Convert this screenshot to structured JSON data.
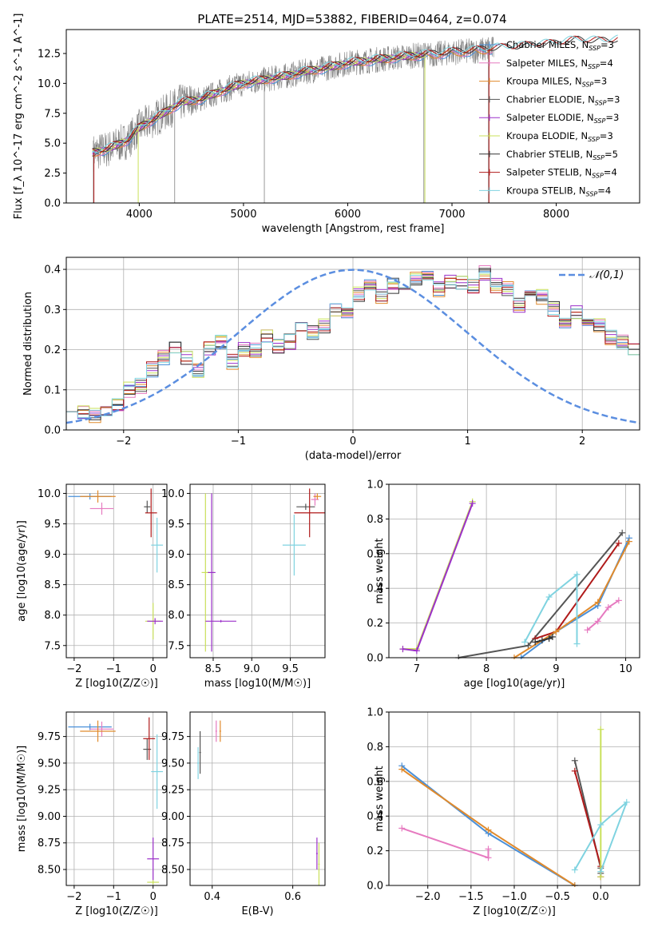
{
  "title": "PLATE=2514, MJD=53882, FIBERID=0464, z=0.074",
  "colors": {
    "chabrier_miles": "#4a90d9",
    "salpeter_miles": "#e67ac0",
    "kroupa_miles": "#e08a2c",
    "chabrier_elodie": "#555555",
    "salpeter_elodie": "#9b30c9",
    "kroupa_elodie": "#c9e05a",
    "chabrier_stelib": "#333333",
    "salpeter_stelib": "#b01a1a",
    "kroupa_stelib": "#7fd3e0",
    "data": "#808080",
    "normal": "#5b8ee0"
  },
  "chart_data": [
    {
      "id": "spectrum",
      "type": "line",
      "xlabel": "wavelength [Angstrom, rest frame]",
      "ylabel": "Flux [f_λ 10^-17 erg cm^-2 s^-1 A^-1]",
      "xlim": [
        3300,
        8800
      ],
      "ylim": [
        0,
        14.5
      ],
      "xticks": [
        "4000",
        "5000",
        "6000",
        "7000",
        "8000"
      ],
      "yticks": [
        "0.0",
        "2.5",
        "5.0",
        "7.5",
        "10.0",
        "12.5"
      ],
      "grid": false,
      "legend_position": "right",
      "legend": [
        {
          "name": "Chabrier MILES",
          "n_ssp": "3"
        },
        {
          "name": "Salpeter MILES",
          "n_ssp": "4"
        },
        {
          "name": "Kroupa MILES",
          "n_ssp": "3"
        },
        {
          "name": "Chabrier ELODIE",
          "n_ssp": "3"
        },
        {
          "name": "Salpeter ELODIE",
          "n_ssp": "3"
        },
        {
          "name": "Kroupa ELODIE",
          "n_ssp": "3"
        },
        {
          "name": "Chabrier STELIB",
          "n_ssp": "5"
        },
        {
          "name": "Salpeter STELIB",
          "n_ssp": "4"
        },
        {
          "name": "Kroupa STELIB",
          "n_ssp": "4"
        }
      ],
      "model_continuum": {
        "x": [
          3550,
          3700,
          3900,
          4000,
          4200,
          4400,
          4600,
          4800,
          5000,
          5200,
          5400,
          5600,
          5800,
          6000,
          6200,
          6400,
          6600,
          6800,
          7000,
          7200,
          7400,
          7600,
          7800,
          8000,
          8200,
          8400,
          8600
        ],
        "y": [
          4.2,
          4.5,
          5.3,
          6.3,
          7.3,
          8.4,
          8.7,
          9.4,
          10.0,
          10.3,
          10.6,
          11.0,
          11.3,
          11.7,
          11.9,
          12.1,
          12.3,
          12.4,
          12.6,
          12.7,
          12.9,
          13.0,
          13.2,
          13.3,
          13.6,
          13.5,
          13.6
        ]
      }
    },
    {
      "id": "residuals",
      "type": "bar",
      "xlabel": "(data-model)/error",
      "ylabel": "Normed distribution",
      "xlim": [
        -2.5,
        2.5
      ],
      "ylim": [
        0,
        0.43
      ],
      "xticks": [
        "−2",
        "−1",
        "0",
        "1",
        "2"
      ],
      "yticks": [
        "0.0",
        "0.1",
        "0.2",
        "0.3",
        "0.4"
      ],
      "grid": true,
      "legend_position": "top-right",
      "legend": [
        "𝒩(0,1)"
      ],
      "bin_width": 0.1,
      "bin_start": -2.5,
      "reference_values": [
        0.065,
        0.045,
        0.038,
        0.05,
        0.06,
        0.1,
        0.11,
        0.15,
        0.18,
        0.2,
        0.18,
        0.15,
        0.2,
        0.22,
        0.17,
        0.2,
        0.2,
        0.23,
        0.21,
        0.22,
        0.25,
        0.24,
        0.26,
        0.3,
        0.29,
        0.34,
        0.36,
        0.33,
        0.36,
        0.34,
        0.38,
        0.39,
        0.35,
        0.37,
        0.37,
        0.36,
        0.39,
        0.36,
        0.35,
        0.31,
        0.34,
        0.33,
        0.3,
        0.26,
        0.29,
        0.27,
        0.26,
        0.23,
        0.22,
        0.2,
        0.17,
        0.19,
        0.15,
        0.13,
        0.14,
        0.1,
        0.1,
        0.09,
        0.08,
        0.075,
        0.06,
        0.055,
        0.05,
        0.04,
        0.035
      ],
      "normal_mean": 0,
      "normal_sigma": 1
    },
    {
      "id": "z-age",
      "type": "scatter",
      "xlabel": "Z [log10(Z/Z☉)]",
      "ylabel": "age [log10(age/yr)]",
      "xlim": [
        -2.2,
        0.35
      ],
      "ylim": [
        7.3,
        10.15
      ],
      "xticks": [
        "−2",
        "−1",
        "0"
      ],
      "yticks": [
        "7.5",
        "8.0",
        "8.5",
        "9.0",
        "9.5",
        "10.0"
      ],
      "grid": true,
      "points": [
        {
          "c": "chabrier_miles",
          "x": -1.6,
          "y": 9.95,
          "xerr": 0.55,
          "yerr": 0.05
        },
        {
          "c": "salpeter_miles",
          "x": -1.3,
          "y": 9.75,
          "xerr": 0.3,
          "yerr": 0.1
        },
        {
          "c": "kroupa_miles",
          "x": -1.4,
          "y": 9.95,
          "xerr": 0.45,
          "yerr": 0.1
        },
        {
          "c": "chabrier_elodie",
          "x": -0.15,
          "y": 9.78,
          "xerr": 0.08,
          "yerr": 0.1
        },
        {
          "c": "salpeter_stelib",
          "x": -0.05,
          "y": 9.68,
          "xerr": 0.15,
          "yerr": 0.4
        },
        {
          "c": "kroupa_stelib",
          "x": 0.1,
          "y": 9.15,
          "xerr": 0.15,
          "yerr": 0.45
        },
        {
          "c": "kroupa_elodie",
          "x": 0.0,
          "y": 7.9,
          "xerr": 0.2,
          "yerr": 0.3
        },
        {
          "c": "salpeter_elodie",
          "x": 0.05,
          "y": 7.9,
          "xerr": 0.2,
          "yerr": 0.05
        }
      ]
    },
    {
      "id": "mass-age",
      "type": "scatter",
      "xlabel": "mass [log10(M/M☉)]",
      "ylabel": "",
      "xlim": [
        8.2,
        9.95
      ],
      "ylim": [
        7.3,
        10.15
      ],
      "xticks": [
        "8.5",
        "9.0",
        "9.5"
      ],
      "yticks": [
        "7.5",
        "8.0",
        "8.5",
        "9.0",
        "9.5",
        "10.0"
      ],
      "grid": true,
      "points": [
        {
          "c": "chabrier_elodie",
          "x": 9.7,
          "y": 9.78,
          "xerr": 0.12,
          "yerr": 0.05
        },
        {
          "c": "salpeter_miles",
          "x": 9.82,
          "y": 9.9,
          "xerr": 0.05,
          "yerr": 0.1
        },
        {
          "c": "salpeter_stelib",
          "x": 9.75,
          "y": 9.68,
          "xerr": 0.2,
          "yerr": 0.4
        },
        {
          "c": "kroupa_stelib",
          "x": 9.55,
          "y": 9.15,
          "xerr": 0.15,
          "yerr": 0.5
        },
        {
          "c": "kroupa_miles",
          "x": 9.85,
          "y": 9.95,
          "xerr": 0.05,
          "yerr": 0.05
        },
        {
          "c": "kroupa_elodie",
          "x": 8.4,
          "y": 8.7,
          "xerr": 0.05,
          "yerr": 1.3
        },
        {
          "c": "salpeter_elodie",
          "x": 8.48,
          "y": 8.7,
          "xerr": 0.05,
          "yerr": 1.3
        },
        {
          "c": "salpeter_elodie",
          "x": 8.6,
          "y": 7.9,
          "xerr": 0.2,
          "yerr": 0.02
        }
      ]
    },
    {
      "id": "age-weight",
      "type": "line",
      "xlabel": "age [log10(age/yr)]",
      "ylabel": "mass weight",
      "xlim": [
        6.6,
        10.2
      ],
      "ylim": [
        0,
        1.0
      ],
      "xticks": [
        "7",
        "8",
        "9",
        "10"
      ],
      "yticks": [
        "0.0",
        "0.2",
        "0.4",
        "0.6",
        "0.8",
        "1.0"
      ],
      "grid": true,
      "series": [
        {
          "c": "kroupa_elodie",
          "x": [
            6.8,
            7.0,
            7.8
          ],
          "y": [
            0.05,
            0.05,
            0.9
          ]
        },
        {
          "c": "salpeter_elodie",
          "x": [
            6.8,
            7.0,
            7.8
          ],
          "y": [
            0.05,
            0.04,
            0.89
          ]
        },
        {
          "c": "chabrier_elodie",
          "x": [
            7.6,
            8.6,
            9.95
          ],
          "y": [
            0.0,
            0.07,
            0.72
          ]
        },
        {
          "c": "salpeter_stelib",
          "x": [
            8.7,
            9.0,
            9.9
          ],
          "y": [
            0.11,
            0.15,
            0.66
          ]
        },
        {
          "c": "chabrier_miles",
          "x": [
            8.5,
            9.0,
            9.6,
            10.05
          ],
          "y": [
            0.0,
            0.15,
            0.3,
            0.69
          ]
        },
        {
          "c": "kroupa_miles",
          "x": [
            8.4,
            9.0,
            9.6,
            10.05
          ],
          "y": [
            0.0,
            0.15,
            0.32,
            0.67
          ]
        },
        {
          "c": "kroupa_stelib",
          "x": [
            8.55,
            8.9,
            9.3,
            9.3
          ],
          "y": [
            0.09,
            0.35,
            0.48,
            0.08
          ]
        },
        {
          "c": "salpeter_miles",
          "x": [
            9.45,
            9.6,
            9.75,
            9.9
          ],
          "y": [
            0.16,
            0.21,
            0.29,
            0.33
          ]
        },
        {
          "c": "chabrier_stelib",
          "x": [
            8.7,
            8.8,
            8.9,
            8.95
          ],
          "y": [
            0.09,
            0.1,
            0.11,
            0.12
          ]
        }
      ]
    },
    {
      "id": "z-mass",
      "type": "scatter",
      "xlabel": "Z [log10(Z/Z☉)]",
      "ylabel": "mass [log10(M/M☉)]",
      "xlim": [
        -2.2,
        0.35
      ],
      "ylim": [
        8.35,
        9.98
      ],
      "xticks": [
        "−2",
        "−1",
        "0"
      ],
      "yticks": [
        "8.50",
        "8.75",
        "9.00",
        "9.25",
        "9.50",
        "9.75"
      ],
      "grid": true,
      "points": [
        {
          "c": "chabrier_miles",
          "x": -1.6,
          "y": 9.84,
          "xerr": 0.55,
          "yerr": 0.03
        },
        {
          "c": "salpeter_miles",
          "x": -1.3,
          "y": 9.82,
          "xerr": 0.3,
          "yerr": 0.07
        },
        {
          "c": "kroupa_miles",
          "x": -1.4,
          "y": 9.8,
          "xerr": 0.45,
          "yerr": 0.1
        },
        {
          "c": "chabrier_elodie",
          "x": -0.15,
          "y": 9.63,
          "xerr": 0.1,
          "yerr": 0.1
        },
        {
          "c": "salpeter_stelib",
          "x": -0.1,
          "y": 9.73,
          "xerr": 0.15,
          "yerr": 0.2
        },
        {
          "c": "kroupa_stelib",
          "x": 0.1,
          "y": 9.42,
          "xerr": 0.15,
          "yerr": 0.35
        },
        {
          "c": "salpeter_elodie",
          "x": 0.0,
          "y": 8.6,
          "xerr": 0.15,
          "yerr": 0.2
        },
        {
          "c": "kroupa_elodie",
          "x": 0.0,
          "y": 8.38,
          "xerr": 0.15,
          "yerr": 0.02
        }
      ]
    },
    {
      "id": "ebv-mass",
      "type": "scatter",
      "xlabel": "E(B-V)",
      "ylabel": "",
      "xlim": [
        0.345,
        0.68
      ],
      "ylim": [
        8.35,
        9.98
      ],
      "xticks": [
        "0.4",
        "0.6"
      ],
      "yticks": [
        "8.50",
        "8.75",
        "9.00",
        "9.25",
        "9.50",
        "9.75"
      ],
      "grid": true,
      "points": [
        {
          "c": "chabrier_elodie",
          "x": 0.37,
          "y": 9.6,
          "xerr": 0.002,
          "yerr": 0.2
        },
        {
          "c": "kroupa_stelib",
          "x": 0.365,
          "y": 9.5,
          "xerr": 0.002,
          "yerr": 0.15
        },
        {
          "c": "salpeter_miles",
          "x": 0.41,
          "y": 9.8,
          "xerr": 0.002,
          "yerr": 0.1
        },
        {
          "c": "kroupa_miles",
          "x": 0.42,
          "y": 9.8,
          "xerr": 0.002,
          "yerr": 0.1
        },
        {
          "c": "salpeter_elodie",
          "x": 0.66,
          "y": 8.65,
          "xerr": 0.002,
          "yerr": 0.15
        },
        {
          "c": "kroupa_elodie",
          "x": 0.665,
          "y": 8.55,
          "xerr": 0.002,
          "yerr": 0.2
        }
      ]
    },
    {
      "id": "z-weight",
      "type": "line",
      "xlabel": "Z [log10(Z/Z☉)]",
      "ylabel": "mass weight",
      "xlim": [
        -2.45,
        0.45
      ],
      "ylim": [
        0,
        1.0
      ],
      "xticks": [
        "−2.0",
        "−1.5",
        "−1.0",
        "−0.5",
        "0.0"
      ],
      "yticks": [
        "0.0",
        "0.2",
        "0.4",
        "0.6",
        "0.8",
        "1.0"
      ],
      "grid": true,
      "series": [
        {
          "c": "chabrier_miles",
          "x": [
            -2.3,
            -1.3,
            -0.3
          ],
          "y": [
            0.69,
            0.3,
            0.0
          ]
        },
        {
          "c": "kroupa_miles",
          "x": [
            -2.3,
            -1.3,
            -0.3
          ],
          "y": [
            0.67,
            0.32,
            0.0
          ]
        },
        {
          "c": "salpeter_miles",
          "x": [
            -2.3,
            -1.3,
            -1.3
          ],
          "y": [
            0.33,
            0.16,
            0.21
          ]
        },
        {
          "c": "chabrier_elodie",
          "x": [
            -0.3,
            0.0,
            0.0
          ],
          "y": [
            0.72,
            0.1,
            0.07
          ]
        },
        {
          "c": "salpeter_stelib",
          "x": [
            -0.3,
            0.0,
            0.0
          ],
          "y": [
            0.66,
            0.11,
            0.05
          ]
        },
        {
          "c": "kroupa_elodie",
          "x": [
            0.0,
            0.0
          ],
          "y": [
            0.9,
            0.05
          ]
        },
        {
          "c": "kroupa_stelib",
          "x": [
            -0.3,
            0.0,
            0.3,
            0.0
          ],
          "y": [
            0.09,
            0.35,
            0.48,
            0.08
          ]
        }
      ]
    }
  ]
}
